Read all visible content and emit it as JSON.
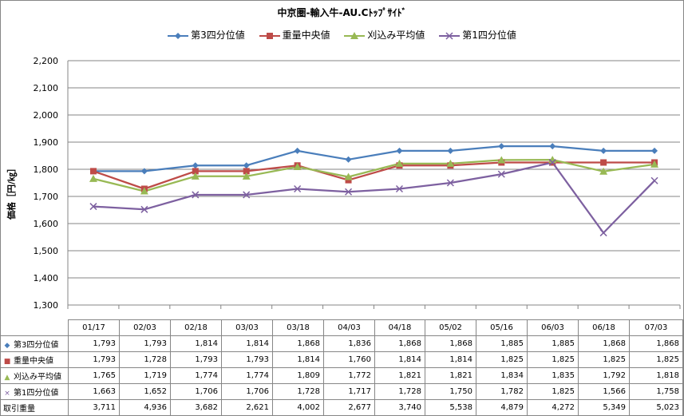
{
  "chart_data": {
    "type": "line",
    "title": "中京圏-輸入牛-AU.Cﾄｯﾌﾟｻｲﾄﾞ",
    "ylabel": "価格［円/㎏］",
    "ylim": [
      1300,
      2200
    ],
    "ytick_step": 100,
    "yticks": [
      "1,300",
      "1,400",
      "1,500",
      "1,600",
      "1,700",
      "1,800",
      "1,900",
      "2,000",
      "2,100",
      "2,200"
    ],
    "grid": "horizontal",
    "legend_position": "top",
    "categories": [
      "01/17",
      "02/03",
      "02/18",
      "03/03",
      "03/18",
      "04/03",
      "04/18",
      "05/02",
      "05/16",
      "06/03",
      "06/18",
      "07/03"
    ],
    "series": [
      {
        "name": "第3四分位値",
        "color": "#4a7ebb",
        "marker": "diamond",
        "marker_char": "◆",
        "values": [
          1793,
          1793,
          1814,
          1814,
          1868,
          1836,
          1868,
          1868,
          1885,
          1885,
          1868,
          1868
        ],
        "labels": [
          "1,793",
          "1,793",
          "1,814",
          "1,814",
          "1,868",
          "1,836",
          "1,868",
          "1,868",
          "1,885",
          "1,885",
          "1,868",
          "1,868"
        ]
      },
      {
        "name": "重量中央値",
        "color": "#be4b48",
        "marker": "square",
        "marker_char": "■",
        "values": [
          1793,
          1728,
          1793,
          1793,
          1814,
          1760,
          1814,
          1814,
          1825,
          1825,
          1825,
          1825
        ],
        "labels": [
          "1,793",
          "1,728",
          "1,793",
          "1,793",
          "1,814",
          "1,760",
          "1,814",
          "1,814",
          "1,825",
          "1,825",
          "1,825",
          "1,825"
        ]
      },
      {
        "name": "刈込み平均値",
        "color": "#98b954",
        "marker": "triangle",
        "marker_char": "▲",
        "values": [
          1765,
          1719,
          1774,
          1774,
          1809,
          1772,
          1821,
          1821,
          1834,
          1835,
          1792,
          1818
        ],
        "labels": [
          "1,765",
          "1,719",
          "1,774",
          "1,774",
          "1,809",
          "1,772",
          "1,821",
          "1,821",
          "1,834",
          "1,835",
          "1,792",
          "1,818"
        ]
      },
      {
        "name": "第1四分位値",
        "color": "#7d60a0",
        "marker": "x",
        "marker_char": "×",
        "values": [
          1663,
          1652,
          1706,
          1706,
          1728,
          1717,
          1728,
          1750,
          1782,
          1825,
          1566,
          1758
        ],
        "labels": [
          "1,663",
          "1,652",
          "1,706",
          "1,706",
          "1,728",
          "1,717",
          "1,728",
          "1,750",
          "1,782",
          "1,825",
          "1,566",
          "1,758"
        ]
      }
    ],
    "extra_rows": [
      {
        "name": "取引重量",
        "values": [
          "3,711",
          "4,936",
          "3,682",
          "2,621",
          "4,002",
          "2,677",
          "3,740",
          "5,538",
          "4,879",
          "4,272",
          "5,349",
          "5,023"
        ]
      }
    ]
  }
}
